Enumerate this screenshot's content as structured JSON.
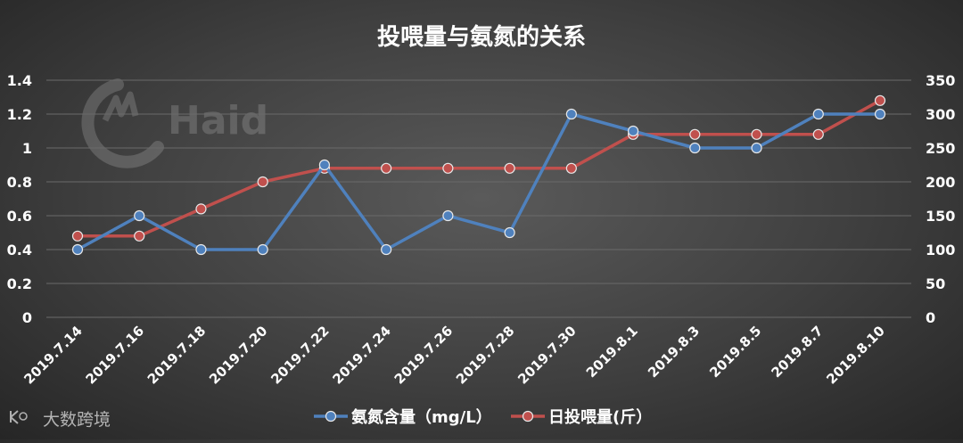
{
  "chart_data": {
    "type": "line",
    "title": "投喂量与氨氮的关系",
    "categories": [
      "2019.7.14",
      "2019.7.16",
      "2019.7.18",
      "2019.7.20",
      "2019.7.22",
      "2019.7.24",
      "2019.7.26",
      "2019.7.28",
      "2019.7.30",
      "2019.8.1",
      "2019.8.3",
      "2019.8.5",
      "2019.8.7",
      "2019.8.10"
    ],
    "series": [
      {
        "name": "氨氮含量（mg/L）",
        "axis": "left",
        "color": "#4f81bd",
        "values": [
          0.4,
          0.6,
          0.4,
          0.4,
          0.9,
          0.4,
          0.6,
          0.5,
          1.2,
          1.1,
          1.0,
          1.0,
          1.2,
          1.2
        ]
      },
      {
        "name": "日投喂量(斤）",
        "axis": "right",
        "color": "#c0504d",
        "values": [
          120,
          120,
          160,
          200,
          220,
          220,
          220,
          220,
          220,
          270,
          270,
          270,
          270,
          320
        ]
      }
    ],
    "y_left": {
      "min": 0,
      "max": 1.4,
      "ticks": [
        "0",
        "0.2",
        "0.4",
        "0.6",
        "0.8",
        "1",
        "1.2",
        "1.4"
      ]
    },
    "y_right": {
      "min": 0,
      "max": 350,
      "ticks": [
        "0",
        "50",
        "100",
        "150",
        "200",
        "250",
        "300",
        "350"
      ]
    },
    "grid": true,
    "legend_position": "bottom"
  },
  "watermarks": {
    "logo_text": "Haid",
    "corner_text": "大数跨境"
  }
}
